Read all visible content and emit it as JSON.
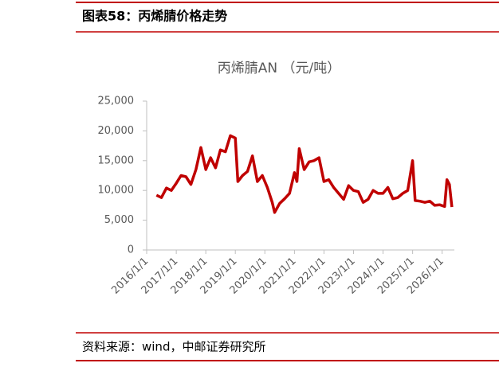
{
  "header": "图表58：丙烯腈价格走势",
  "source": "资料来源：wind，中邮证券研究所",
  "chart_data": {
    "type": "line",
    "title": "丙烯腈AN （元/吨）",
    "color": "#c00000",
    "x": [
      "2016/5/1",
      "2016/7/1",
      "2016/9/1",
      "2016/11/1",
      "2017/1/1",
      "2017/3/1",
      "2017/5/1",
      "2017/7/1",
      "2017/9/1",
      "2017/11/1",
      "2018/1/1",
      "2018/3/1",
      "2018/5/1",
      "2018/7/1",
      "2018/9/1",
      "2018/11/1",
      "2019/1/1",
      "2019/2/1",
      "2019/4/1",
      "2019/6/1",
      "2019/8/1",
      "2019/10/1",
      "2019/12/1",
      "2020/2/1",
      "2020/4/1",
      "2020/5/1",
      "2020/7/1",
      "2020/9/1",
      "2020/11/1",
      "2021/1/1",
      "2021/2/1",
      "2021/3/1",
      "2021/5/1",
      "2021/7/1",
      "2021/9/1",
      "2021/11/1",
      "2022/1/1",
      "2022/3/1",
      "2022/5/1",
      "2022/7/1",
      "2022/9/1",
      "2022/11/1",
      "2023/1/1",
      "2023/3/1",
      "2023/5/1",
      "2023/7/1",
      "2023/9/1",
      "2023/11/1",
      "2024/1/1",
      "2024/3/1",
      "2024/5/1",
      "2024/7/1",
      "2024/9/1",
      "2024/11/1",
      "2025/1/1",
      "2025/2/1",
      "2025/4/1",
      "2025/6/1",
      "2025/8/1",
      "2025/10/1",
      "2025/12/1",
      "2026/2/1",
      "2026/3/1",
      "2026/4/1",
      "2026/5/1"
    ],
    "values": [
      9200,
      8800,
      10400,
      10000,
      11200,
      12500,
      12300,
      11000,
      13500,
      17200,
      13500,
      15500,
      13800,
      16800,
      16500,
      19200,
      18800,
      11500,
      12500,
      13200,
      15800,
      11500,
      12500,
      10500,
      8000,
      6300,
      7800,
      8600,
      9500,
      13000,
      11500,
      17000,
      13500,
      14800,
      15000,
      15500,
      11500,
      11800,
      10500,
      9500,
      8500,
      10800,
      10000,
      9800,
      8000,
      8500,
      10000,
      9500,
      9500,
      10500,
      8600,
      8800,
      9500,
      10000,
      15000,
      8300,
      8200,
      8000,
      8200,
      7500,
      7600,
      7300,
      11800,
      11000,
      7200
    ],
    "xlim": [
      "2016/1/1",
      "2026/6/1"
    ],
    "xticks": [
      "2016/1/1",
      "2017/1/1",
      "2018/1/1",
      "2019/1/1",
      "2020/1/1",
      "2021/1/1",
      "2022/1/1",
      "2023/1/1",
      "2024/1/1",
      "2025/1/1",
      "2026/1/1"
    ],
    "ylim": [
      0,
      25000
    ],
    "yticks": [
      0,
      {
        "value": 5000,
        "label": "5,000"
      },
      {
        "value": 10000,
        "label": "10,000"
      },
      {
        "value": 15000,
        "label": "15,000"
      },
      {
        "value": 20000,
        "label": "20,000"
      },
      {
        "value": 25000,
        "label": "25,000"
      }
    ],
    "grid": false
  }
}
